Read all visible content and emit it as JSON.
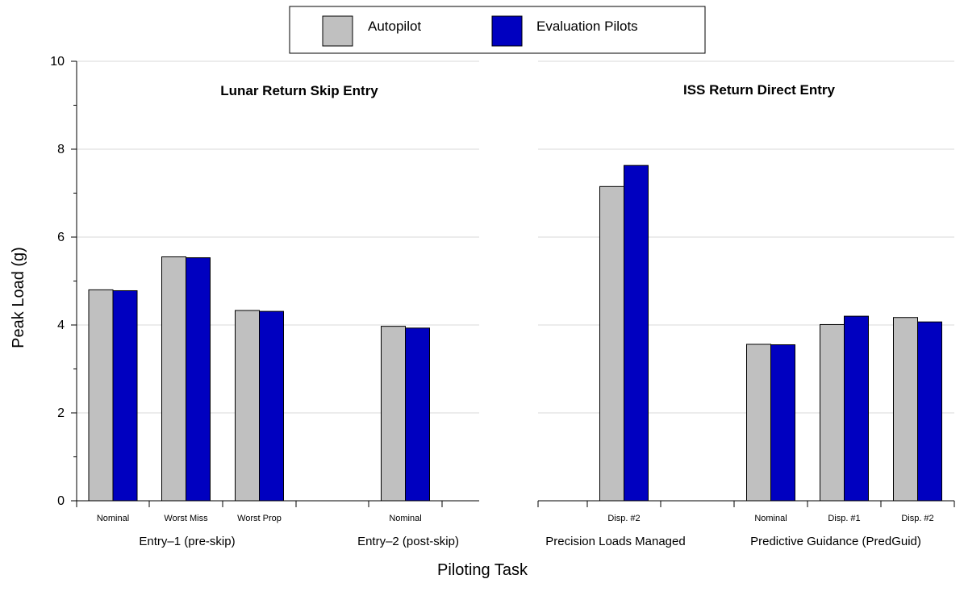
{
  "chart_data": {
    "type": "bar",
    "ylabel": "Peak Load (g)",
    "xlabel": "Piloting Task",
    "ylim": [
      0,
      10
    ],
    "yticks": [
      0,
      2,
      4,
      6,
      8,
      10
    ],
    "grid": true,
    "legend_position": "top-center",
    "colors": {
      "Autopilot": "#c0c0c0",
      "Evaluation Pilots": "#0000c0"
    },
    "series": [
      {
        "name": "Autopilot"
      },
      {
        "name": "Evaluation Pilots"
      }
    ],
    "panels": [
      {
        "title": "Lunar Return Skip Entry",
        "groups": [
          {
            "label": "Entry–1 (pre-skip)",
            "categories": [
              {
                "label": "Nominal",
                "values": [
                  4.8,
                  4.78
                ]
              },
              {
                "label": "Worst Miss",
                "values": [
                  5.55,
                  5.53
                ]
              },
              {
                "label": "Worst Prop",
                "values": [
                  4.33,
                  4.31
                ]
              }
            ]
          },
          {
            "label": "Entry–2 (post-skip)",
            "categories": [
              {
                "label": "Nominal",
                "values": [
                  3.97,
                  3.93
                ]
              }
            ]
          }
        ]
      },
      {
        "title": "ISS Return Direct Entry",
        "groups": [
          {
            "label": "Precision Loads Managed",
            "categories": [
              {
                "label": "Disp. #2",
                "values": [
                  7.15,
                  7.63
                ]
              }
            ]
          },
          {
            "label": "Predictive Guidance (PredGuid)",
            "categories": [
              {
                "label": "Nominal",
                "values": [
                  3.56,
                  3.55
                ]
              },
              {
                "label": "Disp. #1",
                "values": [
                  4.01,
                  4.2
                ]
              },
              {
                "label": "Disp. #2",
                "values": [
                  4.17,
                  4.07
                ]
              }
            ]
          }
        ]
      }
    ]
  }
}
